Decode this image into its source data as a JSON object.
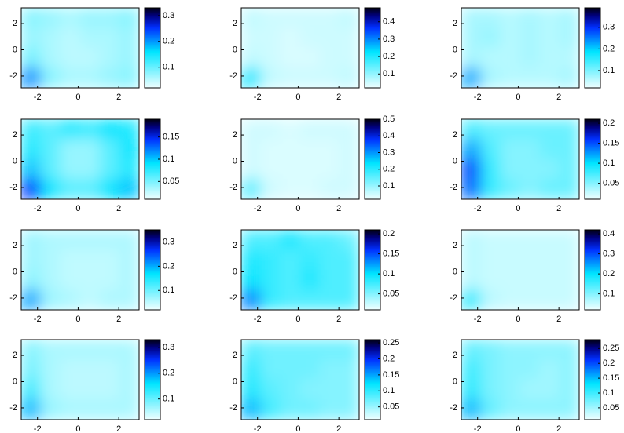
{
  "chart_data": [
    {
      "type": "heatmap",
      "xlim": [
        -2.8,
        3
      ],
      "ylim": [
        -2.9,
        3.2
      ],
      "xticks": [
        -2,
        0,
        2
      ],
      "yticks": [
        -2,
        0,
        2
      ],
      "clim": [
        0.02,
        0.33
      ],
      "cticks": [
        0.1,
        0.2,
        0.3
      ],
      "z": [
        [
          0.08,
          0.07,
          0.06,
          0.07,
          0.07,
          0.08
        ],
        [
          0.07,
          0.06,
          0.05,
          0.06,
          0.06,
          0.07
        ],
        [
          0.09,
          0.06,
          0.05,
          0.05,
          0.06,
          0.07
        ],
        [
          0.2,
          0.08,
          0.06,
          0.06,
          0.07,
          0.08
        ]
      ]
    },
    {
      "type": "heatmap",
      "xlim": [
        -2.8,
        3
      ],
      "ylim": [
        -2.9,
        3.2
      ],
      "xticks": [
        -2,
        0,
        2
      ],
      "yticks": [
        -2,
        0,
        2
      ],
      "clim": [
        0.02,
        0.48
      ],
      "cticks": [
        0.1,
        0.2,
        0.3,
        0.4
      ],
      "z": [
        [
          0.06,
          0.05,
          0.05,
          0.05,
          0.05,
          0.06
        ],
        [
          0.05,
          0.05,
          0.04,
          0.05,
          0.05,
          0.05
        ],
        [
          0.06,
          0.05,
          0.04,
          0.04,
          0.05,
          0.05
        ],
        [
          0.2,
          0.06,
          0.05,
          0.05,
          0.05,
          0.06
        ]
      ]
    },
    {
      "type": "heatmap",
      "xlim": [
        -2.8,
        3
      ],
      "ylim": [
        -2.9,
        3.2
      ],
      "xticks": [
        -2,
        0,
        2
      ],
      "yticks": [
        -2,
        0,
        2
      ],
      "clim": [
        0.02,
        0.39
      ],
      "cticks": [
        0.1,
        0.2,
        0.3
      ],
      "z": [
        [
          0.07,
          0.07,
          0.06,
          0.07,
          0.06,
          0.07
        ],
        [
          0.07,
          0.08,
          0.06,
          0.07,
          0.06,
          0.07
        ],
        [
          0.07,
          0.06,
          0.06,
          0.07,
          0.06,
          0.06
        ],
        [
          0.22,
          0.07,
          0.06,
          0.06,
          0.06,
          0.07
        ]
      ]
    },
    {
      "type": "heatmap",
      "xlim": [
        -2.8,
        3
      ],
      "ylim": [
        -2.9,
        3.2
      ],
      "xticks": [
        -2,
        0,
        2
      ],
      "yticks": [
        -2,
        0,
        2
      ],
      "clim": [
        0.01,
        0.19
      ],
      "cticks": [
        0.05,
        0.1,
        0.15
      ],
      "z": [
        [
          0.07,
          0.06,
          0.08,
          0.07,
          0.09,
          0.08
        ],
        [
          0.08,
          0.06,
          0.04,
          0.04,
          0.06,
          0.09
        ],
        [
          0.1,
          0.06,
          0.04,
          0.04,
          0.06,
          0.08
        ],
        [
          0.14,
          0.09,
          0.06,
          0.06,
          0.09,
          0.1
        ]
      ]
    },
    {
      "type": "heatmap",
      "xlim": [
        -2.8,
        3
      ],
      "ylim": [
        -2.9,
        3.2
      ],
      "xticks": [
        -2,
        0,
        2
      ],
      "yticks": [
        -2,
        0,
        2
      ],
      "clim": [
        0.02,
        0.5
      ],
      "cticks": [
        0.1,
        0.2,
        0.3,
        0.4,
        0.5
      ],
      "z": [
        [
          0.05,
          0.05,
          0.04,
          0.05,
          0.05,
          0.05
        ],
        [
          0.05,
          0.04,
          0.04,
          0.04,
          0.04,
          0.05
        ],
        [
          0.05,
          0.04,
          0.04,
          0.04,
          0.04,
          0.05
        ],
        [
          0.15,
          0.05,
          0.04,
          0.04,
          0.05,
          0.05
        ]
      ]
    },
    {
      "type": "heatmap",
      "xlim": [
        -2.8,
        3
      ],
      "ylim": [
        -2.9,
        3.2
      ],
      "xticks": [
        -2,
        0,
        2
      ],
      "yticks": [
        -2,
        0,
        2
      ],
      "clim": [
        0.01,
        0.21
      ],
      "cticks": [
        0.05,
        0.1,
        0.15,
        0.2
      ],
      "z": [
        [
          0.07,
          0.06,
          0.06,
          0.06,
          0.06,
          0.06
        ],
        [
          0.12,
          0.07,
          0.05,
          0.05,
          0.06,
          0.06
        ],
        [
          0.15,
          0.08,
          0.05,
          0.05,
          0.05,
          0.06
        ],
        [
          0.14,
          0.08,
          0.06,
          0.05,
          0.06,
          0.06
        ]
      ]
    },
    {
      "type": "heatmap",
      "xlim": [
        -2.8,
        3
      ],
      "ylim": [
        -2.9,
        3.2
      ],
      "xticks": [
        -2,
        0,
        2
      ],
      "yticks": [
        -2,
        0,
        2
      ],
      "clim": [
        0.02,
        0.35
      ],
      "cticks": [
        0.1,
        0.2,
        0.3
      ],
      "z": [
        [
          0.07,
          0.06,
          0.06,
          0.06,
          0.06,
          0.06
        ],
        [
          0.07,
          0.06,
          0.05,
          0.05,
          0.05,
          0.06
        ],
        [
          0.08,
          0.06,
          0.05,
          0.05,
          0.05,
          0.06
        ],
        [
          0.2,
          0.07,
          0.06,
          0.05,
          0.06,
          0.06
        ]
      ]
    },
    {
      "type": "heatmap",
      "xlim": [
        -2.8,
        3
      ],
      "ylim": [
        -2.9,
        3.2
      ],
      "xticks": [
        -2,
        0,
        2
      ],
      "yticks": [
        -2,
        0,
        2
      ],
      "clim": [
        0.01,
        0.21
      ],
      "cticks": [
        0.05,
        0.1,
        0.15,
        0.2
      ],
      "z": [
        [
          0.07,
          0.07,
          0.09,
          0.07,
          0.07,
          0.06
        ],
        [
          0.09,
          0.08,
          0.07,
          0.08,
          0.07,
          0.07
        ],
        [
          0.1,
          0.08,
          0.07,
          0.09,
          0.07,
          0.07
        ],
        [
          0.13,
          0.08,
          0.07,
          0.07,
          0.07,
          0.07
        ]
      ]
    },
    {
      "type": "heatmap",
      "xlim": [
        -2.8,
        3
      ],
      "ylim": [
        -2.9,
        3.2
      ],
      "xticks": [
        -2,
        0,
        2
      ],
      "yticks": [
        -2,
        0,
        2
      ],
      "clim": [
        0.02,
        0.42
      ],
      "cticks": [
        0.1,
        0.2,
        0.3,
        0.4
      ],
      "z": [
        [
          0.06,
          0.05,
          0.05,
          0.05,
          0.05,
          0.05
        ],
        [
          0.06,
          0.05,
          0.05,
          0.05,
          0.05,
          0.05
        ],
        [
          0.06,
          0.05,
          0.05,
          0.05,
          0.05,
          0.05
        ],
        [
          0.16,
          0.06,
          0.05,
          0.05,
          0.05,
          0.05
        ]
      ]
    },
    {
      "type": "heatmap",
      "xlim": [
        -2.8,
        3
      ],
      "ylim": [
        -2.9,
        3.2
      ],
      "xticks": [
        -2,
        0,
        2
      ],
      "yticks": [
        -2,
        0,
        2
      ],
      "clim": [
        0.02,
        0.33
      ],
      "cticks": [
        0.1,
        0.2,
        0.3
      ],
      "z": [
        [
          0.08,
          0.06,
          0.06,
          0.06,
          0.06,
          0.06
        ],
        [
          0.09,
          0.06,
          0.05,
          0.05,
          0.05,
          0.06
        ],
        [
          0.12,
          0.06,
          0.05,
          0.05,
          0.05,
          0.06
        ],
        [
          0.18,
          0.07,
          0.06,
          0.06,
          0.06,
          0.06
        ]
      ]
    },
    {
      "type": "heatmap",
      "xlim": [
        -2.8,
        3
      ],
      "ylim": [
        -2.9,
        3.2
      ],
      "xticks": [
        -2,
        0,
        2
      ],
      "yticks": [
        -2,
        0,
        2
      ],
      "clim": [
        0.01,
        0.26
      ],
      "cticks": [
        0.05,
        0.1,
        0.15,
        0.2,
        0.25
      ],
      "z": [
        [
          0.08,
          0.07,
          0.07,
          0.07,
          0.07,
          0.07
        ],
        [
          0.1,
          0.07,
          0.07,
          0.07,
          0.06,
          0.06
        ],
        [
          0.11,
          0.08,
          0.07,
          0.06,
          0.06,
          0.06
        ],
        [
          0.14,
          0.09,
          0.07,
          0.07,
          0.06,
          0.06
        ]
      ]
    },
    {
      "type": "heatmap",
      "xlim": [
        -2.8,
        3
      ],
      "ylim": [
        -2.9,
        3.2
      ],
      "xticks": [
        -2,
        0,
        2
      ],
      "yticks": [
        -2,
        0,
        2
      ],
      "clim": [
        0.01,
        0.28
      ],
      "cticks": [
        0.05,
        0.1,
        0.15,
        0.2,
        0.25
      ],
      "z": [
        [
          0.08,
          0.07,
          0.06,
          0.06,
          0.06,
          0.06
        ],
        [
          0.1,
          0.07,
          0.06,
          0.06,
          0.05,
          0.06
        ],
        [
          0.11,
          0.07,
          0.06,
          0.05,
          0.05,
          0.06
        ],
        [
          0.15,
          0.08,
          0.06,
          0.06,
          0.06,
          0.06
        ]
      ]
    }
  ]
}
